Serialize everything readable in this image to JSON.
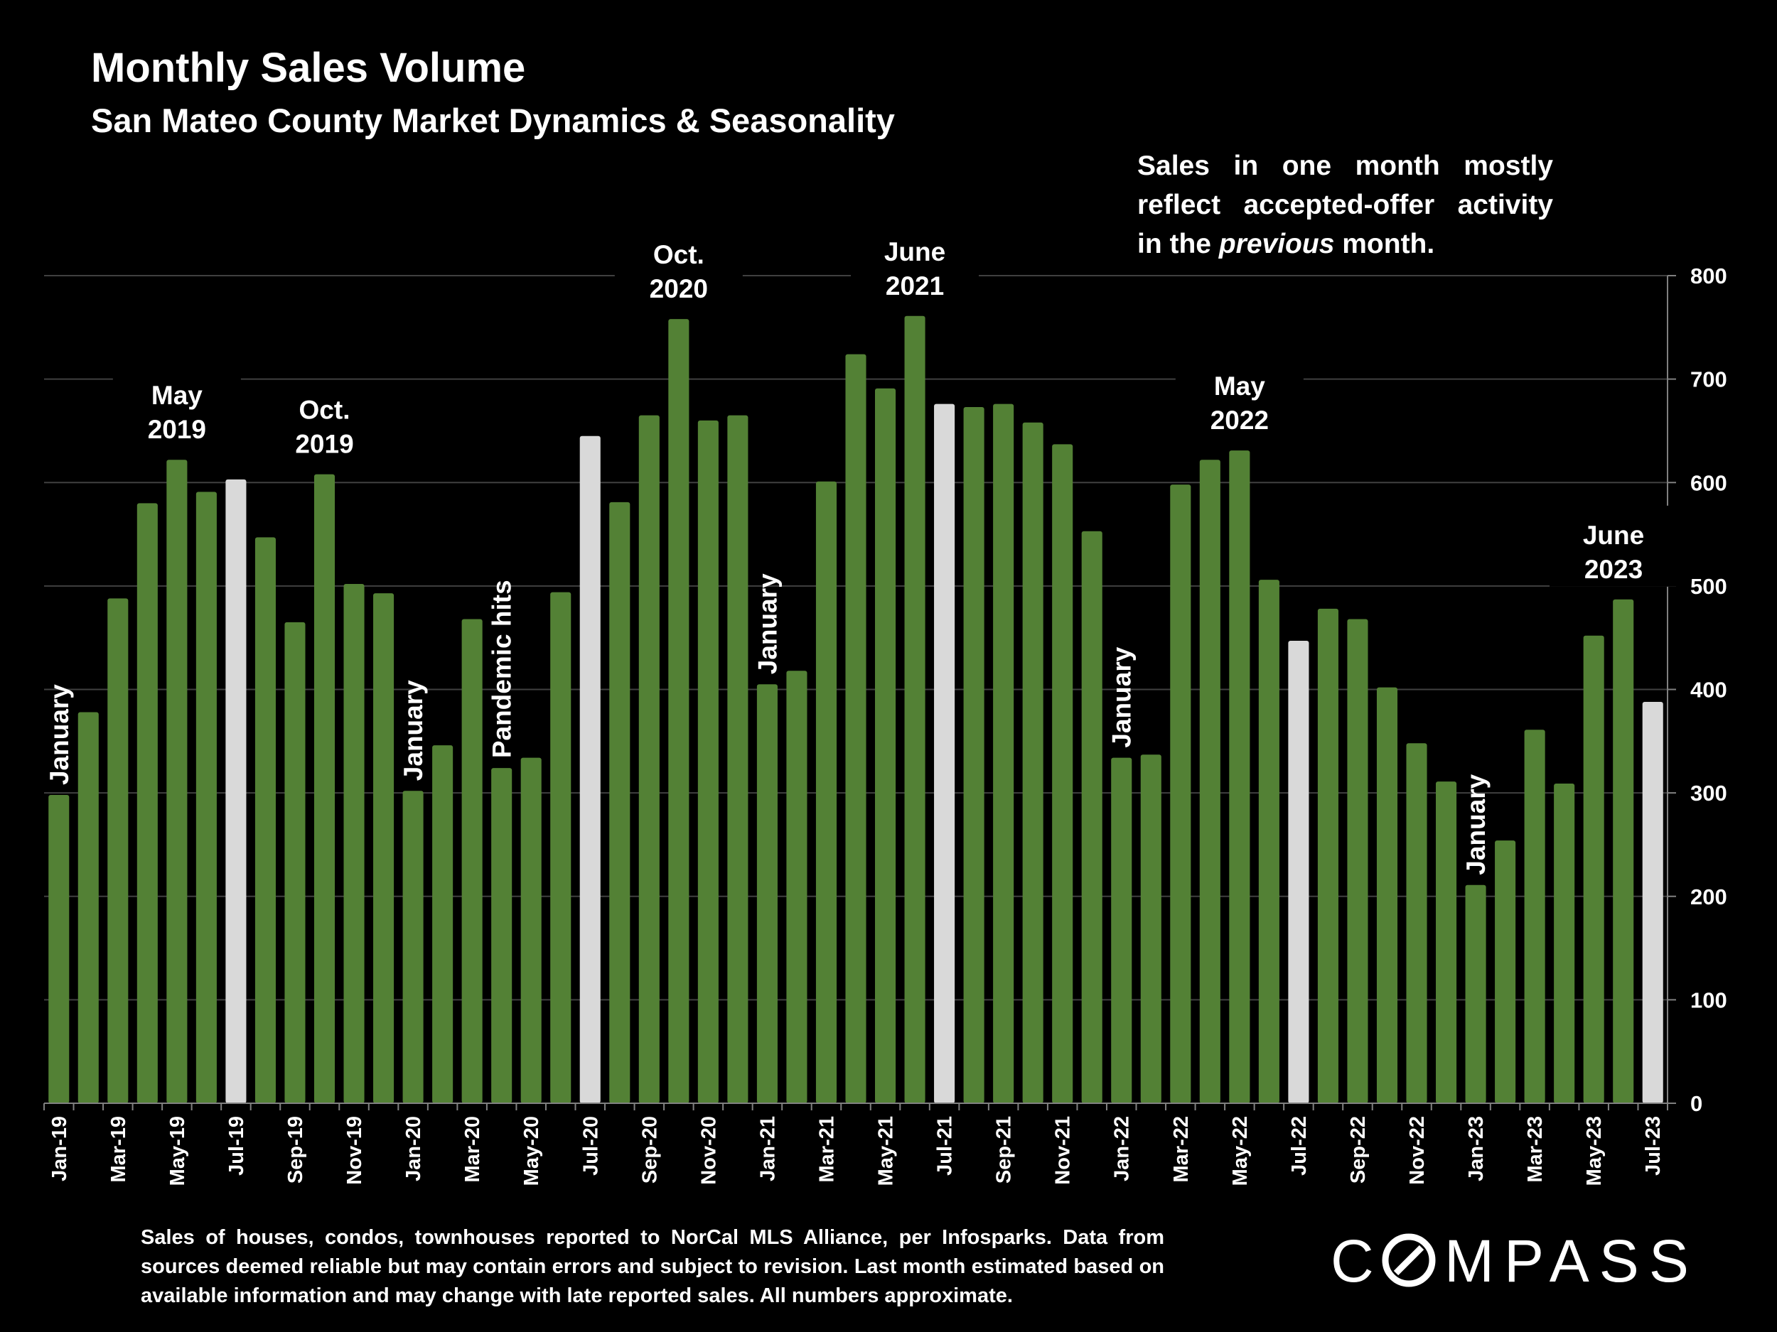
{
  "title": "Monthly Sales Volume",
  "subtitle": "San Mateo County Market Dynamics & Seasonality",
  "note": {
    "before": "Sales in one month mostly reflect accepted-offer activity in the ",
    "emphasis": "previous",
    "after": " month."
  },
  "footnote": "Sales of houses, condos, townhouses reported to NorCal MLS Alliance, per Infosparks. Data from sources deemed reliable but may contain errors and subject to revision. Last month estimated based on available information and may change with late reported sales. All numbers approximate.",
  "logo": "COMPASS",
  "colors": {
    "background": "#000000",
    "bar": "#538135",
    "highlight_bar": "#d9d9d9",
    "gridline": "#404040",
    "text": "#ffffff"
  },
  "chart_data": {
    "type": "bar",
    "title": "Monthly Sales Volume",
    "subtitle": "San Mateo County Market Dynamics & Seasonality",
    "xlabel": "",
    "ylabel": "",
    "ylim": [
      0,
      800
    ],
    "y_ticks": [
      0,
      100,
      200,
      300,
      400,
      500,
      600,
      700,
      800
    ],
    "y_axis_side": "right",
    "grid": true,
    "categories": [
      "Jan-19",
      "Feb-19",
      "Mar-19",
      "Apr-19",
      "May-19",
      "Jun-19",
      "Jul-19",
      "Aug-19",
      "Sep-19",
      "Oct-19",
      "Nov-19",
      "Dec-19",
      "Jan-20",
      "Feb-20",
      "Mar-20",
      "Apr-20",
      "May-20",
      "Jun-20",
      "Jul-20",
      "Aug-20",
      "Sep-20",
      "Oct-20",
      "Nov-20",
      "Dec-20",
      "Jan-21",
      "Feb-21",
      "Mar-21",
      "Apr-21",
      "May-21",
      "Jun-21",
      "Jul-21",
      "Aug-21",
      "Sep-21",
      "Oct-21",
      "Nov-21",
      "Dec-21",
      "Jan-22",
      "Feb-22",
      "Mar-22",
      "Apr-22",
      "May-22",
      "Jun-22",
      "Jul-22",
      "Aug-22",
      "Sep-22",
      "Oct-22",
      "Nov-22",
      "Dec-22",
      "Jan-23",
      "Feb-23",
      "Mar-23",
      "Apr-23",
      "May-23",
      "Jun-23",
      "Jul-23"
    ],
    "x_tick_labels_shown": [
      "Jan-19",
      "Mar-19",
      "May-19",
      "Jul-19",
      "Sep-19",
      "Nov-19",
      "Jan-20",
      "Mar-20",
      "May-20",
      "Jul-20",
      "Sep-20",
      "Nov-20",
      "Jan-21",
      "Mar-21",
      "May-21",
      "Jul-21",
      "Sep-21",
      "Nov-21",
      "Jan-22",
      "Mar-22",
      "May-22",
      "Jul-22",
      "Sep-22",
      "Nov-22",
      "Jan-23",
      "Mar-23",
      "May-23",
      "Jul-23"
    ],
    "values": [
      298,
      378,
      488,
      580,
      622,
      591,
      603,
      547,
      465,
      608,
      502,
      493,
      302,
      346,
      468,
      324,
      334,
      494,
      645,
      581,
      665,
      758,
      660,
      665,
      405,
      418,
      601,
      724,
      691,
      761,
      676,
      673,
      676,
      658,
      637,
      553,
      334,
      337,
      598,
      622,
      631,
      506,
      447,
      478,
      468,
      402,
      348,
      311,
      211,
      254,
      361,
      309,
      452,
      487,
      388
    ],
    "highlighted_categories": [
      "Jul-19",
      "Jul-20",
      "Jul-21",
      "Jul-22",
      "Jul-23"
    ],
    "annotations": [
      {
        "text": "January",
        "category": "Jan-19",
        "rotated": true
      },
      {
        "text": "May 2019",
        "category": "May-19"
      },
      {
        "text": "Oct. 2019",
        "category": "Oct-19"
      },
      {
        "text": "January",
        "category": "Jan-20",
        "rotated": true
      },
      {
        "text": "Pandemic hits",
        "category": "Apr-20",
        "rotated": true
      },
      {
        "text": "Oct. 2020",
        "category": "Oct-20"
      },
      {
        "text": "January",
        "category": "Jan-21",
        "rotated": true
      },
      {
        "text": "June 2021",
        "category": "Jun-21"
      },
      {
        "text": "January",
        "category": "Jan-22",
        "rotated": true
      },
      {
        "text": "May 2022",
        "category": "May-22"
      },
      {
        "text": "January",
        "category": "Jan-23",
        "rotated": true
      },
      {
        "text": "June 2023",
        "category": "Jun-23"
      }
    ]
  }
}
